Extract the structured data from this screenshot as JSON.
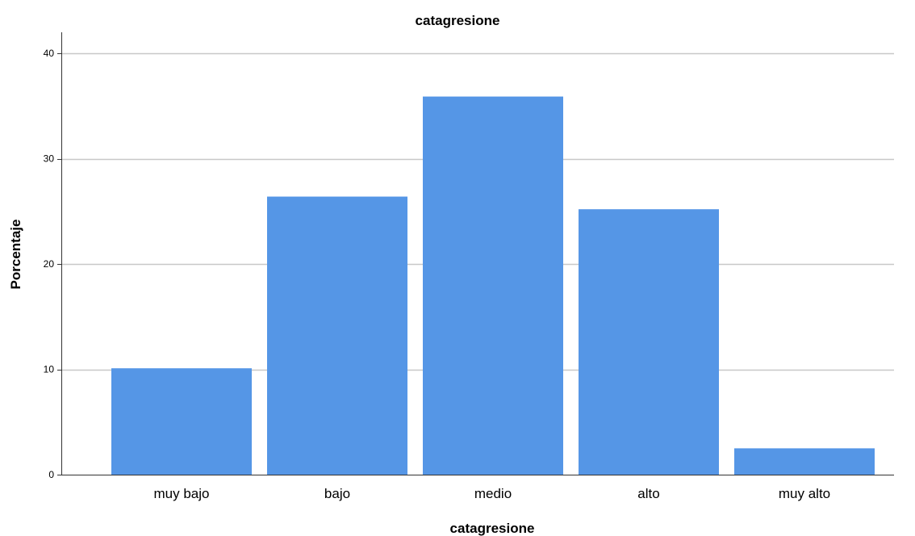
{
  "chart_data": {
    "type": "bar",
    "title": "catagresione",
    "xlabel": "catagresione",
    "ylabel": "Porcentaje",
    "categories": [
      "muy bajo",
      "bajo",
      "medio",
      "alto",
      "muy alto"
    ],
    "values": [
      10.1,
      26.4,
      35.9,
      25.2,
      2.5
    ],
    "ylim": [
      0,
      42
    ],
    "yticks": [
      0,
      10,
      20,
      30,
      40
    ],
    "grid": true,
    "colors": {
      "bar": "#5596e6",
      "grid": "#c8c8c8",
      "axis": "#333333"
    }
  }
}
